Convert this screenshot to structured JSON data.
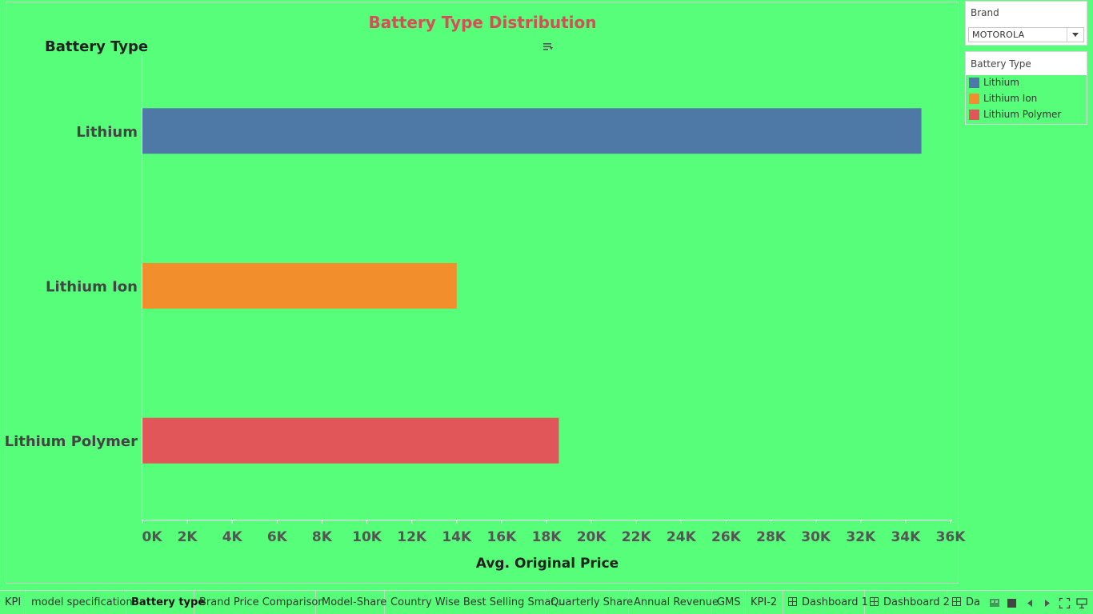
{
  "chart_data": {
    "type": "bar",
    "orientation": "horizontal",
    "title": "Battery Type Distribution",
    "row_header": "Battery Type",
    "xlabel": "Avg. Original Price",
    "xlim": [
      0,
      36000
    ],
    "ticks": [
      "0K",
      "2K",
      "4K",
      "6K",
      "8K",
      "10K",
      "12K",
      "14K",
      "16K",
      "18K",
      "20K",
      "22K",
      "24K",
      "26K",
      "28K",
      "30K",
      "32K",
      "34K",
      "36K"
    ],
    "categories": [
      "Lithium",
      "Lithium Ion",
      "Lithium Polymer"
    ],
    "values": [
      34700,
      14000,
      18550
    ],
    "colors": [
      "#4e79a7",
      "#f28e2b",
      "#e15759"
    ]
  },
  "filter": {
    "title": "Brand",
    "value": "MOTOROLA"
  },
  "legend": {
    "title": "Battery Type",
    "items": [
      {
        "label": "Lithium",
        "color": "#4e79a7"
      },
      {
        "label": "Lithium Ion",
        "color": "#f28e2b"
      },
      {
        "label": "Lithium Polymer",
        "color": "#e15759"
      }
    ]
  },
  "tabs": [
    {
      "label": "KPI",
      "active": false,
      "dashboard": false
    },
    {
      "label": "model specification",
      "active": false,
      "dashboard": false
    },
    {
      "label": "Battery type",
      "active": true,
      "dashboard": false
    },
    {
      "label": "Brand Price Comparison",
      "active": false,
      "dashboard": false
    },
    {
      "label": "Model-Share",
      "active": false,
      "dashboard": false
    },
    {
      "label": "Country Wise Best Selling Smar...",
      "active": false,
      "dashboard": false
    },
    {
      "label": "Quarterly Share",
      "active": false,
      "dashboard": false
    },
    {
      "label": "Annual Revenue",
      "active": false,
      "dashboard": false
    },
    {
      "label": "GMS",
      "active": false,
      "dashboard": false
    },
    {
      "label": "KPI-2",
      "active": false,
      "dashboard": false
    },
    {
      "label": "Dashboard 1",
      "active": false,
      "dashboard": true
    },
    {
      "label": "Dashboard 2",
      "active": false,
      "dashboard": true
    },
    {
      "label": "Da",
      "active": false,
      "dashboard": true
    }
  ],
  "icons": {
    "sort": "sort-descending-icon",
    "dropdown": "chevron-down-icon",
    "controls": [
      "filmstrip-view-icon",
      "tab-view-icon",
      "previous-sheet-icon",
      "next-sheet-icon",
      "fullscreen-icon",
      "presentation-icon"
    ]
  }
}
